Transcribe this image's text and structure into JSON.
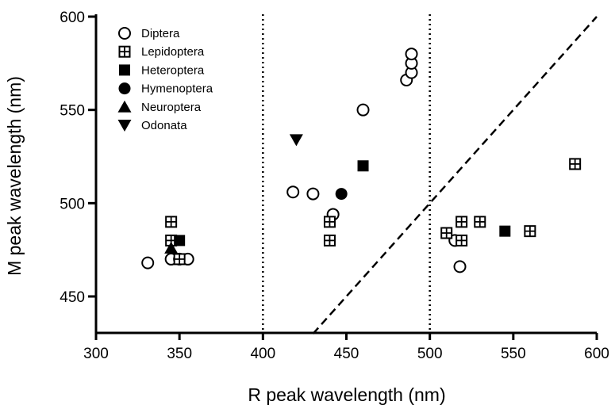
{
  "chart_data": {
    "type": "scatter",
    "xlabel": "R peak wavelength (nm)",
    "ylabel": "M peak wavelength (nm)",
    "xlim": [
      300,
      600
    ],
    "ylim": [
      430,
      605
    ],
    "xticks": [
      300,
      350,
      400,
      450,
      500,
      550,
      600
    ],
    "yticks": [
      450,
      500,
      550,
      600
    ],
    "grid": false,
    "legend_position": "top-left",
    "vertical_reference_lines": [
      400,
      500
    ],
    "diagonal_reference_line": {
      "description": "y = x",
      "from": [
        430,
        430
      ],
      "to": [
        600,
        600
      ],
      "style": "dashed"
    },
    "series": [
      {
        "name": "Diptera",
        "marker": "open-circle",
        "points": [
          [
            331,
            468
          ],
          [
            345,
            470
          ],
          [
            350,
            470
          ],
          [
            355,
            470
          ],
          [
            418,
            506
          ],
          [
            430,
            505
          ],
          [
            442,
            494
          ],
          [
            460,
            550
          ],
          [
            486,
            566
          ],
          [
            489,
            570
          ],
          [
            489,
            575
          ],
          [
            489,
            580
          ],
          [
            515,
            480
          ],
          [
            518,
            466
          ]
        ]
      },
      {
        "name": "Lepidoptera",
        "marker": "crossed-square",
        "points": [
          [
            345,
            490
          ],
          [
            345,
            480
          ],
          [
            350,
            470
          ],
          [
            440,
            490
          ],
          [
            440,
            480
          ],
          [
            510,
            484
          ],
          [
            519,
            490
          ],
          [
            519,
            480
          ],
          [
            530,
            490
          ],
          [
            560,
            485
          ],
          [
            587,
            521
          ]
        ]
      },
      {
        "name": "Heteroptera",
        "marker": "filled-square",
        "points": [
          [
            350,
            480
          ],
          [
            460,
            520
          ],
          [
            545,
            485
          ]
        ]
      },
      {
        "name": "Hymenoptera",
        "marker": "filled-circle",
        "points": [
          [
            447,
            505
          ]
        ]
      },
      {
        "name": "Neuroptera",
        "marker": "filled-triangle-up",
        "points": [
          [
            345,
            476
          ]
        ]
      },
      {
        "name": "Odonata",
        "marker": "filled-triangle-down",
        "points": [
          [
            420,
            534
          ]
        ]
      }
    ]
  }
}
